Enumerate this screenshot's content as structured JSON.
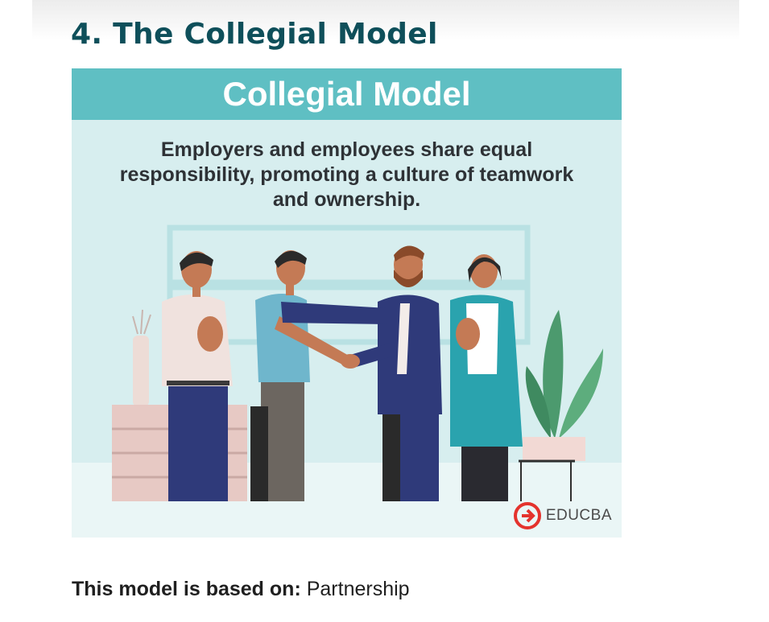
{
  "section": {
    "heading": "4. The Collegial Model"
  },
  "infographic": {
    "title": "Collegial Model",
    "caption_line_1": "Employers and employees share equal",
    "caption_line_2": "responsibility, promoting a culture of teamwork",
    "caption_line_3": "and ownership.",
    "logo_text": "EDUCBA",
    "colors": {
      "banner": "#5fbfc3",
      "background": "#d7eeef",
      "logo_red": "#e4332d"
    }
  },
  "footer": {
    "label": "This model is based on:",
    "value": "Partnership"
  }
}
